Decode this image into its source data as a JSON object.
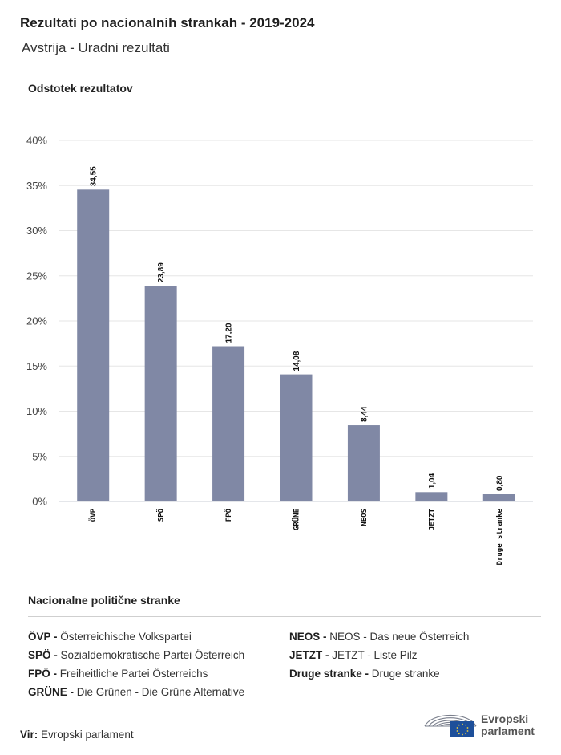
{
  "header": {
    "title": "Rezultati po nacionalnih strankah - 2019-2024",
    "subtitle": "Avstrija - Uradni rezultati",
    "ylabel": "Odstotek rezultatov"
  },
  "chart_data": {
    "type": "bar",
    "title": "Rezultati po nacionalnih strankah - 2019-2024",
    "subtitle": "Avstrija - Uradni rezultati",
    "xlabel": "",
    "ylabel": "Odstotek rezultatov",
    "categories": [
      "ÖVP",
      "SPÖ",
      "FPÖ",
      "GRÜNE",
      "NEOS",
      "JETZT",
      "Druge stranke"
    ],
    "values": [
      34.55,
      23.89,
      17.2,
      14.08,
      8.44,
      1.04,
      0.8
    ],
    "value_labels": [
      "34,55",
      "23,89",
      "17,20",
      "14,08",
      "8,44",
      "1,04",
      "0,80"
    ],
    "ylim": [
      0,
      40
    ],
    "yticks": [
      0,
      5,
      10,
      15,
      20,
      25,
      30,
      35,
      40
    ],
    "ytick_labels": [
      "0%",
      "5%",
      "10%",
      "15%",
      "20%",
      "25%",
      "30%",
      "35%",
      "40%"
    ],
    "grid": true,
    "bar_color": "#8088a5"
  },
  "legend": {
    "title": "Nacionalne politične stranke",
    "items": [
      {
        "abbr": "ÖVP -",
        "name": "Österreichische Volkspartei"
      },
      {
        "abbr": "SPÖ -",
        "name": "Sozialdemokratische Partei Österreich"
      },
      {
        "abbr": "FPÖ -",
        "name": "Freiheitliche Partei Österreichs"
      },
      {
        "abbr": "GRÜNE -",
        "name": "Die Grünen - Die Grüne Alternative"
      },
      {
        "abbr": "NEOS -",
        "name": "NEOS - Das neue Österreich"
      },
      {
        "abbr": "JETZT -",
        "name": "JETZT - Liste Pilz"
      },
      {
        "abbr": "Druge stranke -",
        "name": "Druge stranke"
      }
    ]
  },
  "source": {
    "label": "Vir:",
    "value": "Evropski parlament"
  },
  "logo": {
    "line1": "Evropski",
    "line2": "parlament",
    "icon": "european-parliament-logo"
  }
}
